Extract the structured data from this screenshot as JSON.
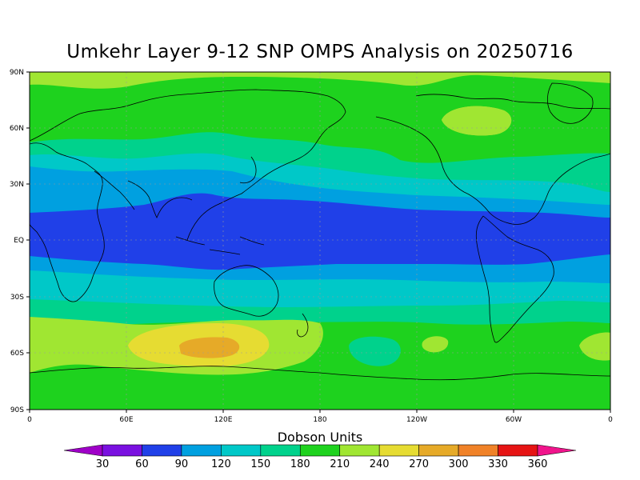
{
  "title": "Umkehr Layer 9-12 SNP OMPS Analysis on 20250716",
  "map": {
    "lat_labels": [
      "90N",
      "60N",
      "30N",
      "EQ",
      "30S",
      "60S",
      "90S"
    ],
    "lon_labels": [
      "0",
      "60E",
      "120E",
      "180",
      "120W",
      "60W",
      "0"
    ],
    "colors": {
      "c30": "#9f00c8",
      "c60": "#2040e8",
      "c90": "#00a0e0",
      "c120": "#00c8c8",
      "c150": "#00d28c",
      "c180": "#1ed21e",
      "c210": "#a0e632",
      "c240": "#e6dc32",
      "c270": "#e6aa28",
      "c300": "#f08228",
      "c330": "#e61414",
      "c360": "#f0148c"
    }
  },
  "colorbar": {
    "title": "Dobson Units",
    "labels": [
      "30",
      "60",
      "90",
      "120",
      "150",
      "180",
      "210",
      "240",
      "270",
      "300",
      "330",
      "360"
    ],
    "colors": [
      "#9f00c8",
      "#7a10e0",
      "#2040e8",
      "#00a0e0",
      "#00c8c8",
      "#00d28c",
      "#1ed21e",
      "#a0e632",
      "#e6dc32",
      "#e6aa28",
      "#f08228",
      "#e61414",
      "#f0148c"
    ]
  }
}
